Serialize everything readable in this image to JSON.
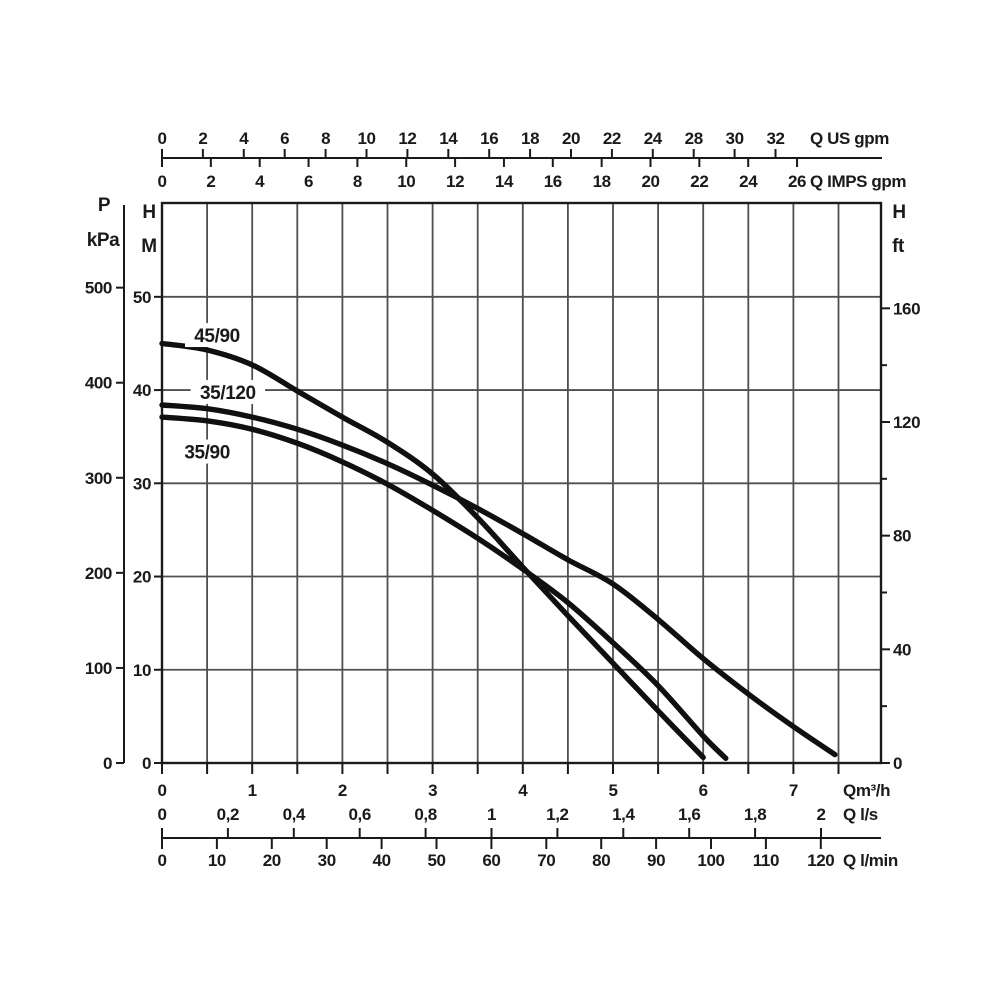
{
  "chart_data": {
    "type": "line",
    "title": "",
    "description": "Pump performance curves: head (H) versus flow rate (Q) for three pump models",
    "grid": true,
    "legend_position": "labels-on-curves",
    "colors": {
      "background": "#ffffff",
      "curve": "#101010",
      "grid": "#4f4f4f",
      "axis": "#1a1a1a",
      "text": "#1a1a1a"
    },
    "series": [
      {
        "name": "45/90",
        "label_pos_q_h": [
          0.61,
          45.9
        ],
        "points": [
          [
            0,
            45.0
          ],
          [
            0.5,
            44.3
          ],
          [
            1.0,
            42.7
          ],
          [
            1.5,
            39.9
          ],
          [
            2.0,
            37.1
          ],
          [
            2.5,
            34.4
          ],
          [
            3.0,
            31.0
          ],
          [
            3.5,
            26.3
          ],
          [
            4.0,
            21.0
          ],
          [
            4.5,
            15.8
          ],
          [
            5.0,
            10.7
          ],
          [
            5.5,
            5.6
          ],
          [
            6.0,
            0.6
          ]
        ]
      },
      {
        "name": "35/120",
        "label_pos_q_h": [
          0.73,
          39.8
        ],
        "points": [
          [
            0,
            38.4
          ],
          [
            0.5,
            38.0
          ],
          [
            1.0,
            37.1
          ],
          [
            1.5,
            35.8
          ],
          [
            2.0,
            34.1
          ],
          [
            2.5,
            32.1
          ],
          [
            3.0,
            29.8
          ],
          [
            3.5,
            27.3
          ],
          [
            4.0,
            24.6
          ],
          [
            4.5,
            21.8
          ],
          [
            5.0,
            19.2
          ],
          [
            5.5,
            15.4
          ],
          [
            6.0,
            11.2
          ],
          [
            6.5,
            7.4
          ],
          [
            7.0,
            3.9
          ],
          [
            7.46,
            0.9
          ]
        ]
      },
      {
        "name": "35/90",
        "label_pos_q_h": [
          0.5,
          33.4
        ],
        "points": [
          [
            0,
            37.1
          ],
          [
            0.5,
            36.7
          ],
          [
            1.0,
            35.8
          ],
          [
            1.5,
            34.3
          ],
          [
            2.0,
            32.3
          ],
          [
            2.5,
            29.9
          ],
          [
            3.0,
            27.1
          ],
          [
            3.5,
            24.1
          ],
          [
            4.0,
            20.8
          ],
          [
            4.5,
            17.2
          ],
          [
            5.0,
            12.9
          ],
          [
            5.5,
            8.3
          ],
          [
            6.0,
            2.9
          ],
          [
            6.25,
            0.5
          ]
        ]
      }
    ],
    "y_axis_m": {
      "title_top": "H",
      "title_unit": "M",
      "ticks": [
        0,
        10,
        20,
        30,
        40,
        50
      ],
      "range_m": [
        0,
        60
      ]
    },
    "y_axis_kpa": {
      "title_top": "P",
      "title_unit": "kPa",
      "ticks": [
        0,
        100,
        200,
        300,
        400,
        500
      ]
    },
    "y_axis_ft": {
      "title_top": "H",
      "title_unit": "ft",
      "major_ticks": [
        0,
        40,
        80,
        120,
        160
      ],
      "minor_ticks": [
        20,
        60,
        100,
        140
      ]
    },
    "x_axis_m3h": {
      "unit": "Qm³/h",
      "tick_labels": [
        "0",
        "1",
        "2",
        "3",
        "4",
        "5",
        "6",
        "7"
      ],
      "minor_step": 0.5,
      "range": [
        0,
        7.97
      ]
    },
    "x_axis_ls": {
      "unit": "Q l/s",
      "tick_labels": [
        "0",
        "0,2",
        "0,4",
        "0,6",
        "0,8",
        "1",
        "1,2",
        "1,4",
        "1,6",
        "1,8",
        "2"
      ]
    },
    "x_axis_lmin": {
      "unit": "Q l/min",
      "tick_labels": [
        "0",
        "10",
        "20",
        "30",
        "40",
        "50",
        "60",
        "70",
        "80",
        "90",
        "100",
        "110",
        "120"
      ]
    },
    "x_axis_usgpm": {
      "unit": "Q US gpm",
      "tick_labels": [
        "0",
        "2",
        "4",
        "6",
        "8",
        "10",
        "12",
        "14",
        "16",
        "18",
        "20",
        "22",
        "24",
        "28",
        "30",
        "32"
      ]
    },
    "x_axis_impsgpm": {
      "unit": "Q IMPS gpm",
      "tick_labels": [
        "0",
        "2",
        "4",
        "6",
        "8",
        "10",
        "12",
        "14",
        "16",
        "18",
        "20",
        "22",
        "24",
        "26"
      ]
    }
  }
}
